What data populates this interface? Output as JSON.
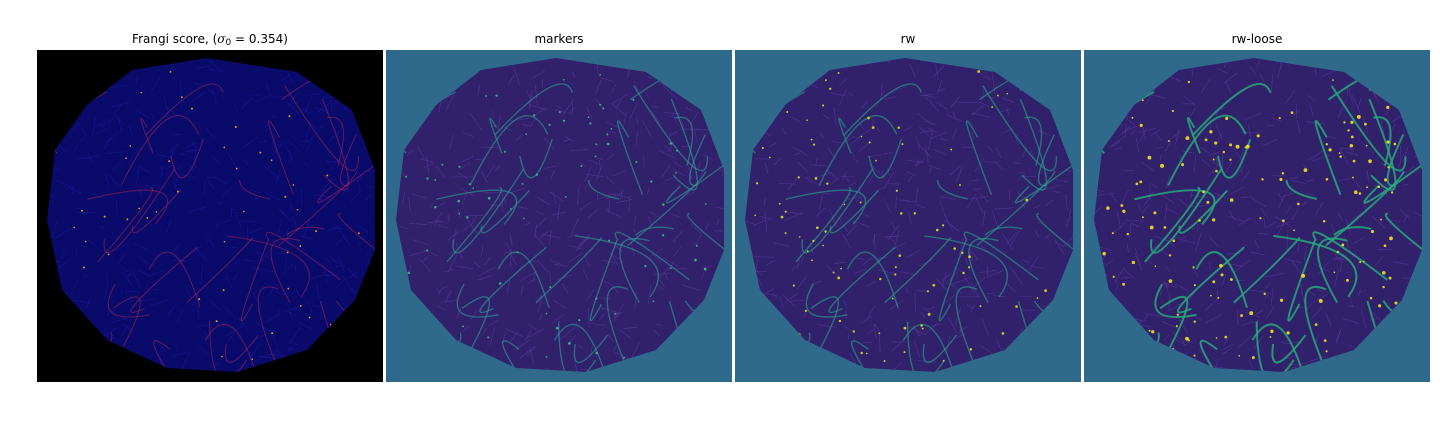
{
  "panels": [
    {
      "id": "frangi",
      "title_prefix": "Frangi score, (",
      "title_sigma": "σ",
      "title_sub": "0",
      "title_suffix": " = 0.354)",
      "background": "#000000",
      "fill": "#0a0a6a",
      "vessel": "#c8285a",
      "highlight": "#f5a623",
      "density": 0.15
    },
    {
      "id": "markers",
      "title": "markers",
      "background": "#2f6a8c",
      "fill": "#31216b",
      "vessel": "#2fa59c",
      "highlight": "#3fbf8a",
      "density": 0.35
    },
    {
      "id": "rw",
      "title": "rw",
      "background": "#2f6a8c",
      "fill": "#31216b",
      "vessel": "#27a58c",
      "highlight": "#d7e41f",
      "density": 0.4
    },
    {
      "id": "rw-loose",
      "title": "rw-loose",
      "background": "#2f6a8c",
      "fill": "#31216b",
      "vessel": "#25b07a",
      "highlight": "#f2e51e",
      "density": 0.75
    }
  ]
}
